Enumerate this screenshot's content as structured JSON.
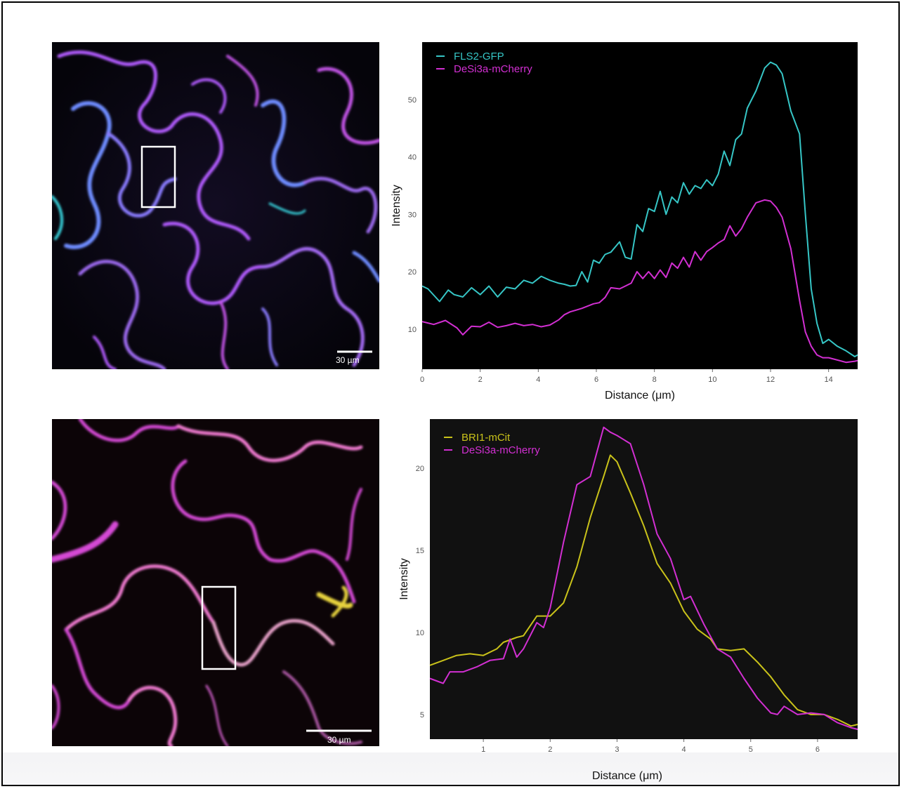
{
  "panels": {
    "top_image": {
      "scale_label": "30 µm",
      "colors": [
        "#6e8cff",
        "#b25cff",
        "#c455e8",
        "#38d6e0"
      ]
    },
    "bottom_image": {
      "scale_label": "30 µm",
      "colors": [
        "#d44ad4",
        "#f07ad0",
        "#e6d23c"
      ]
    }
  },
  "chart_data": [
    {
      "type": "line",
      "title": "",
      "xlabel": "Distance (μm)",
      "ylabel": "Intensity",
      "xlim": [
        0,
        15
      ],
      "ylim": [
        3,
        60
      ],
      "x_ticks": [
        0,
        2,
        4,
        6,
        8,
        10,
        12,
        14
      ],
      "y_ticks": [
        10,
        20,
        30,
        40,
        50
      ],
      "background": "#000000",
      "legend_position": "top-left",
      "series": [
        {
          "name": "FLS2-GFP",
          "color": "#36c6c6",
          "x": [
            0,
            0.2,
            0.6,
            0.9,
            1.1,
            1.4,
            1.7,
            2.0,
            2.3,
            2.6,
            2.9,
            3.2,
            3.5,
            3.8,
            4.1,
            4.4,
            4.7,
            4.9,
            5.1,
            5.3,
            5.5,
            5.7,
            5.9,
            6.1,
            6.3,
            6.5,
            6.8,
            7.0,
            7.2,
            7.4,
            7.6,
            7.8,
            8.0,
            8.2,
            8.4,
            8.6,
            8.8,
            9.0,
            9.2,
            9.4,
            9.6,
            9.8,
            10.0,
            10.2,
            10.4,
            10.6,
            10.8,
            11.0,
            11.2,
            11.5,
            11.8,
            12.0,
            12.2,
            12.4,
            12.7,
            13.0,
            13.2,
            13.4,
            13.6,
            13.8,
            14.0,
            14.3,
            14.6,
            14.9,
            15.0
          ],
          "y": [
            17.5,
            17,
            14.8,
            16.8,
            16,
            15.6,
            17.2,
            16,
            17.5,
            15.6,
            17.3,
            17,
            18.5,
            18,
            19.2,
            18.5,
            18.0,
            17.8,
            17.5,
            17.6,
            20.0,
            18.2,
            22.0,
            21.5,
            23.0,
            23.4,
            25.2,
            22.5,
            22.2,
            28.2,
            27.0,
            31.0,
            30.5,
            34.0,
            30.0,
            33.0,
            32.0,
            35.5,
            33.5,
            35.0,
            34.5,
            36.0,
            35.0,
            37.0,
            41.0,
            38.5,
            43.0,
            44.0,
            48.5,
            51.5,
            55.5,
            56.5,
            56.0,
            54.5,
            48.0,
            44.0,
            30.0,
            17.0,
            11.0,
            7.5,
            8.2,
            7.0,
            6.2,
            5.2,
            5.5
          ]
        },
        {
          "name": "DeSi3a-mCherry",
          "color": "#d22fd2",
          "x": [
            0,
            0.4,
            0.8,
            1.2,
            1.4,
            1.7,
            2.0,
            2.3,
            2.6,
            2.9,
            3.2,
            3.5,
            3.8,
            4.1,
            4.4,
            4.7,
            4.9,
            5.1,
            5.3,
            5.5,
            5.7,
            5.9,
            6.1,
            6.3,
            6.5,
            6.8,
            7.0,
            7.2,
            7.4,
            7.6,
            7.8,
            8.0,
            8.2,
            8.4,
            8.6,
            8.8,
            9.0,
            9.2,
            9.4,
            9.6,
            9.8,
            10.0,
            10.2,
            10.4,
            10.6,
            10.8,
            11.0,
            11.2,
            11.5,
            11.8,
            12.0,
            12.2,
            12.4,
            12.7,
            13.0,
            13.2,
            13.4,
            13.6,
            13.8,
            14.0,
            14.3,
            14.6,
            14.9,
            15.0
          ],
          "y": [
            11.3,
            10.8,
            11.5,
            10.2,
            9.0,
            10.5,
            10.4,
            11.2,
            10.3,
            10.6,
            11.0,
            10.6,
            10.8,
            10.4,
            10.7,
            11.6,
            12.5,
            13.0,
            13.3,
            13.6,
            14.0,
            14.4,
            14.6,
            15.5,
            17.2,
            17.0,
            17.5,
            18.0,
            20.0,
            18.8,
            20.0,
            18.8,
            20.3,
            19.0,
            21.5,
            20.6,
            22.5,
            20.8,
            23.5,
            22.0,
            23.5,
            24.2,
            25.0,
            25.6,
            28.0,
            26.2,
            27.5,
            29.5,
            32.0,
            32.5,
            32.3,
            31.2,
            29.5,
            24.0,
            15.0,
            9.5,
            7.0,
            5.5,
            5.0,
            5.0,
            4.6,
            4.2,
            4.4,
            4.5
          ]
        }
      ]
    },
    {
      "type": "line",
      "title": "",
      "xlabel": "Distance (μm)",
      "ylabel": "Intensity",
      "xlim": [
        0.2,
        6.6
      ],
      "ylim": [
        3.5,
        23
      ],
      "x_ticks": [
        1,
        2,
        3,
        4,
        5,
        6
      ],
      "y_ticks": [
        5,
        10,
        15,
        20
      ],
      "background": "#111111",
      "legend_position": "top-left",
      "series": [
        {
          "name": "BRI1-mCit",
          "color": "#c9c21a",
          "x": [
            0.2,
            0.4,
            0.6,
            0.8,
            1.0,
            1.2,
            1.3,
            1.5,
            1.6,
            1.8,
            2.0,
            2.2,
            2.4,
            2.6,
            2.8,
            2.9,
            3.0,
            3.2,
            3.4,
            3.6,
            3.8,
            4.0,
            4.2,
            4.4,
            4.5,
            4.7,
            4.9,
            5.1,
            5.3,
            5.5,
            5.7,
            5.9,
            6.1,
            6.3,
            6.5,
            6.6
          ],
          "y": [
            8.0,
            8.3,
            8.6,
            8.7,
            8.6,
            9.0,
            9.4,
            9.7,
            9.8,
            11.0,
            11.0,
            11.8,
            14.0,
            17.0,
            19.5,
            20.8,
            20.4,
            18.5,
            16.5,
            14.2,
            13.0,
            11.3,
            10.2,
            9.6,
            9.0,
            8.9,
            9.0,
            8.2,
            7.3,
            6.2,
            5.3,
            5.0,
            5.0,
            4.7,
            4.3,
            4.4
          ]
        },
        {
          "name": "DeSi3a-mCherry",
          "color": "#d22fd2",
          "x": [
            0.2,
            0.4,
            0.5,
            0.7,
            0.9,
            1.1,
            1.3,
            1.4,
            1.5,
            1.6,
            1.8,
            1.9,
            2.0,
            2.2,
            2.4,
            2.6,
            2.8,
            2.9,
            3.0,
            3.2,
            3.4,
            3.6,
            3.8,
            4.0,
            4.1,
            4.3,
            4.5,
            4.7,
            4.9,
            5.1,
            5.3,
            5.4,
            5.5,
            5.7,
            5.9,
            6.1,
            6.3,
            6.5,
            6.6
          ],
          "y": [
            7.2,
            6.9,
            7.6,
            7.6,
            7.9,
            8.3,
            8.4,
            9.6,
            8.5,
            9.0,
            10.6,
            10.3,
            11.5,
            15.5,
            19.0,
            19.5,
            22.5,
            22.2,
            22.0,
            21.5,
            19.0,
            16.0,
            14.5,
            12.0,
            12.2,
            10.5,
            9.0,
            8.5,
            7.2,
            6.0,
            5.1,
            5.0,
            5.5,
            5.0,
            5.1,
            5.0,
            4.5,
            4.2,
            4.1
          ]
        }
      ]
    }
  ]
}
